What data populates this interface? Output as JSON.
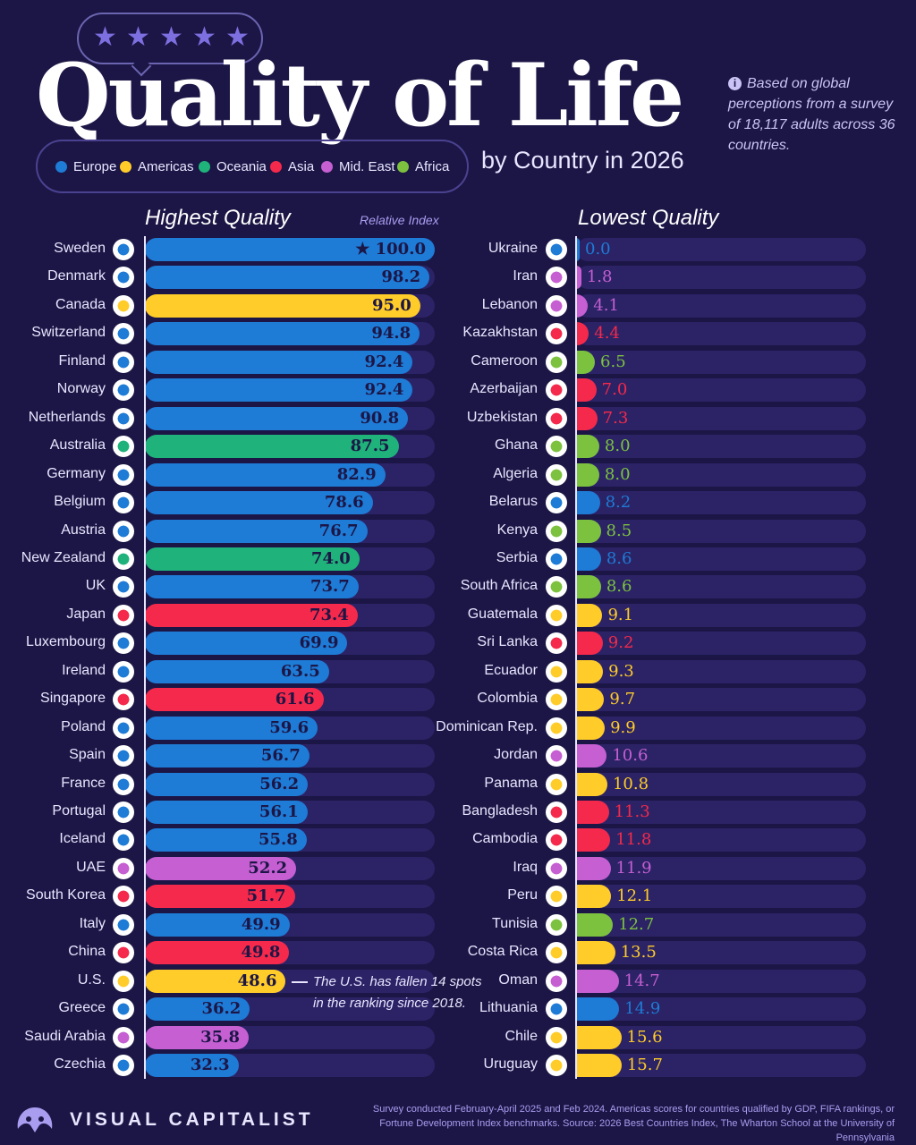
{
  "header": {
    "title": "Quality of Life",
    "subtitle": "by Country in 2026",
    "note": "Based on global perceptions from a survey of 18,117 adults across 36 countries.",
    "stars": [
      "★",
      "★",
      "★",
      "★",
      "★"
    ]
  },
  "legend": [
    {
      "label": "Europe",
      "color": "#1e7bd6"
    },
    {
      "label": "Americas",
      "color": "#ffcc29"
    },
    {
      "label": "Oceania",
      "color": "#1fb27a"
    },
    {
      "label": "Asia",
      "color": "#f5294b"
    },
    {
      "label": "Mid. East",
      "color": "#c55fd2"
    },
    {
      "label": "Africa",
      "color": "#7cc23f"
    }
  ],
  "labels": {
    "highest": "Highest Quality",
    "lowest": "Lowest Quality",
    "relative_index": "Relative Index",
    "us_note": "The U.S. has fallen 14 spots in the ranking since 2018."
  },
  "footer": {
    "brand": "VISUAL CAPITALIST",
    "source": "Survey conducted February-April 2025 and Feb 2024. Americas scores for countries qualified by GDP, FIFA rankings, or Fortune Development Index benchmarks. Source: 2026 Best Countries Index, The Wharton School at the University of Pennsylvania"
  },
  "chart_data": [
    {
      "type": "bar",
      "title": "Highest Quality",
      "value_label": "Relative Index",
      "xlim": [
        0,
        100
      ],
      "categories": [
        "Sweden",
        "Denmark",
        "Canada",
        "Switzerland",
        "Finland",
        "Norway",
        "Netherlands",
        "Australia",
        "Germany",
        "Belgium",
        "Austria",
        "New Zealand",
        "UK",
        "Japan",
        "Luxembourg",
        "Ireland",
        "Singapore",
        "Poland",
        "Spain",
        "France",
        "Portugal",
        "Iceland",
        "UAE",
        "South Korea",
        "Italy",
        "China",
        "U.S.",
        "Greece",
        "Saudi Arabia",
        "Czechia"
      ],
      "values": [
        100.0,
        98.2,
        95.0,
        94.8,
        92.4,
        92.4,
        90.8,
        87.5,
        82.9,
        78.6,
        76.7,
        74.0,
        73.7,
        73.4,
        69.9,
        63.5,
        61.6,
        59.6,
        56.7,
        56.2,
        56.1,
        55.8,
        52.2,
        51.7,
        49.9,
        49.8,
        48.6,
        36.2,
        35.8,
        32.3
      ],
      "regions": [
        "Europe",
        "Europe",
        "Americas",
        "Europe",
        "Europe",
        "Europe",
        "Europe",
        "Oceania",
        "Europe",
        "Europe",
        "Europe",
        "Oceania",
        "Europe",
        "Asia",
        "Europe",
        "Europe",
        "Asia",
        "Europe",
        "Europe",
        "Europe",
        "Europe",
        "Europe",
        "Mid. East",
        "Asia",
        "Europe",
        "Asia",
        "Americas",
        "Europe",
        "Mid. East",
        "Europe"
      ],
      "top_marker": "★"
    },
    {
      "type": "bar",
      "title": "Lowest Quality",
      "xlim": [
        0,
        100
      ],
      "categories": [
        "Ukraine",
        "Iran",
        "Lebanon",
        "Kazakhstan",
        "Cameroon",
        "Azerbaijan",
        "Uzbekistan",
        "Ghana",
        "Algeria",
        "Belarus",
        "Kenya",
        "Serbia",
        "South Africa",
        "Guatemala",
        "Sri Lanka",
        "Ecuador",
        "Colombia",
        "Dominican Rep.",
        "Jordan",
        "Panama",
        "Bangladesh",
        "Cambodia",
        "Iraq",
        "Peru",
        "Tunisia",
        "Costa Rica",
        "Oman",
        "Lithuania",
        "Chile",
        "Uruguay"
      ],
      "values": [
        0.0,
        1.8,
        4.1,
        4.4,
        6.5,
        7.0,
        7.3,
        8.0,
        8.0,
        8.2,
        8.5,
        8.6,
        8.6,
        9.1,
        9.2,
        9.3,
        9.7,
        9.9,
        10.6,
        10.8,
        11.3,
        11.8,
        11.9,
        12.1,
        12.7,
        13.5,
        14.7,
        14.9,
        15.6,
        15.7
      ],
      "regions": [
        "Europe",
        "Mid. East",
        "Mid. East",
        "Asia",
        "Africa",
        "Asia",
        "Asia",
        "Africa",
        "Africa",
        "Europe",
        "Africa",
        "Europe",
        "Africa",
        "Americas",
        "Asia",
        "Americas",
        "Americas",
        "Americas",
        "Mid. East",
        "Americas",
        "Asia",
        "Asia",
        "Mid. East",
        "Americas",
        "Africa",
        "Americas",
        "Mid. East",
        "Europe",
        "Americas",
        "Americas"
      ]
    }
  ]
}
